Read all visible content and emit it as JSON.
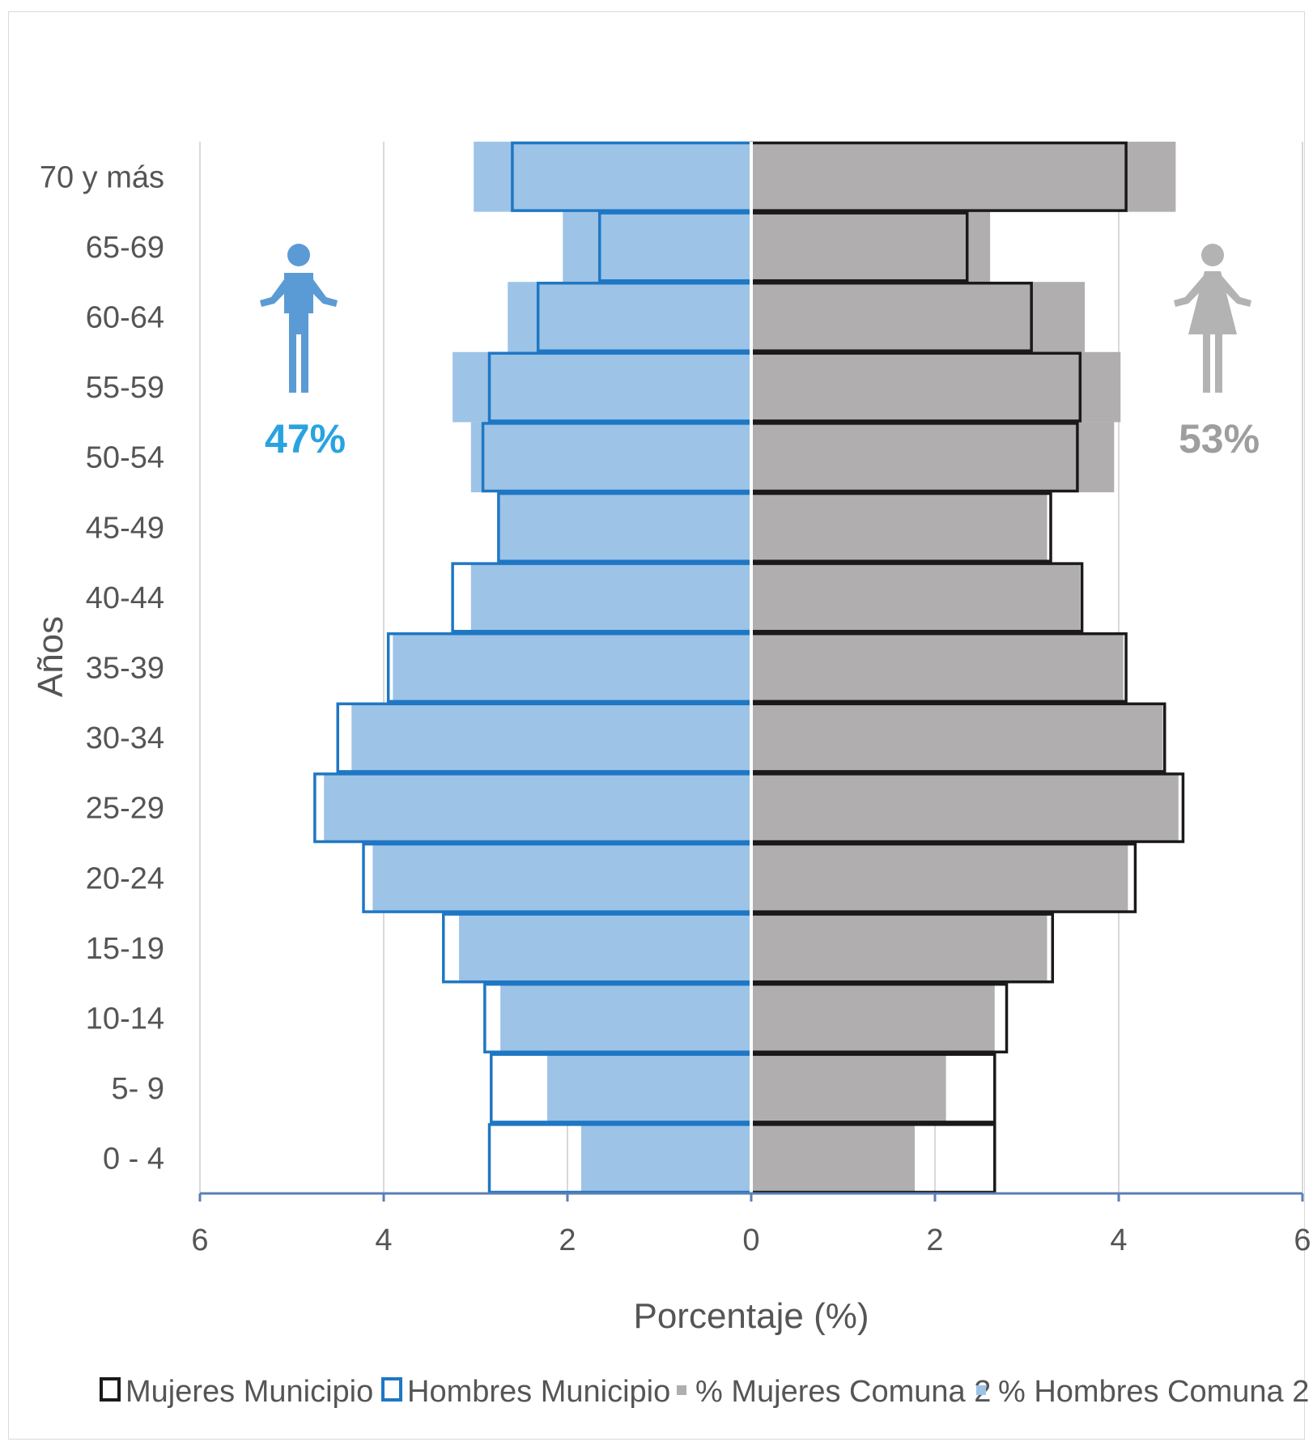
{
  "chart_data": {
    "type": "bar",
    "subtype": "population-pyramid",
    "orientation": "horizontal",
    "categories": [
      "0 - 4",
      "5- 9",
      "10-14",
      "15-19",
      "20-24",
      "25-29",
      "30-34",
      "35-39",
      "40-44",
      "45-49",
      "50-54",
      "55-59",
      "60-64",
      "65-69",
      "70 y más"
    ],
    "series": [
      {
        "name": "Mujeres Municipio",
        "side": "right",
        "style": "outline",
        "color": "#1a1a1a",
        "values": [
          2.65,
          2.65,
          2.78,
          3.28,
          4.18,
          4.7,
          4.5,
          4.08,
          3.6,
          3.26,
          3.55,
          3.58,
          3.05,
          2.35,
          4.08
        ]
      },
      {
        "name": "Hombres Municipio",
        "side": "left",
        "style": "outline",
        "color": "#1f77c4",
        "values": [
          2.85,
          2.83,
          2.9,
          3.35,
          4.22,
          4.75,
          4.5,
          3.95,
          3.25,
          2.75,
          2.92,
          2.85,
          2.32,
          1.65,
          2.6
        ]
      },
      {
        "name": "% Mujeres Comuna 2",
        "side": "right",
        "style": "filled",
        "color": "#b0aeae",
        "values": [
          1.78,
          2.12,
          2.65,
          3.22,
          4.1,
          4.65,
          4.48,
          4.05,
          3.58,
          3.22,
          3.95,
          4.02,
          3.63,
          2.6,
          4.62
        ]
      },
      {
        "name": "% Hombres Comuna 2",
        "side": "left",
        "style": "filled",
        "color": "#9dc3e6",
        "values": [
          1.85,
          2.22,
          2.73,
          3.18,
          4.12,
          4.65,
          4.35,
          3.9,
          3.05,
          2.75,
          3.05,
          3.25,
          2.65,
          2.05,
          3.02
        ]
      }
    ],
    "xlabel": "Porcentaje (%)",
    "ylabel": "Años",
    "xlim": [
      -6,
      6
    ],
    "xticks": [
      -6,
      -4,
      -2,
      0,
      2,
      4,
      6
    ],
    "xtick_labels": [
      "6",
      "4",
      "2",
      "0",
      "2",
      "4",
      "6"
    ],
    "grid": "vertical",
    "legend": "bottom"
  },
  "icons": {
    "male": {
      "icon": "man-icon",
      "percent": "47%",
      "color": "#5b9bd5",
      "text_color": "#29a3e0"
    },
    "female": {
      "icon": "woman-icon",
      "percent": "53%",
      "color": "#b3b3b3",
      "text_color": "#9e9e9e"
    }
  }
}
